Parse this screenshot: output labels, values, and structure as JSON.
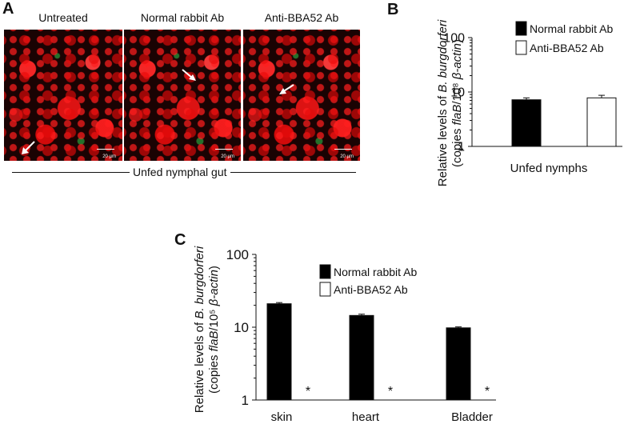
{
  "panel_a": {
    "letter": "A",
    "images": [
      {
        "title": "Untreated",
        "scale_label": "20 µm"
      },
      {
        "title": "Normal rabbit Ab",
        "scale_label": "20 µm"
      },
      {
        "title": "Anti-BBA52 Ab",
        "scale_label": "20 µm"
      }
    ],
    "caption": "Unfed nymphal gut"
  },
  "chart_data": [
    {
      "panel": "B",
      "type": "bar",
      "categories": [
        "Unfed nymphs"
      ],
      "series": [
        {
          "name": "Normal rabbit Ab",
          "values": [
            7.2
          ],
          "errors": [
            0.6
          ],
          "fill": "#000000"
        },
        {
          "name": "Anti-BBA52 Ab",
          "values": [
            7.8
          ],
          "errors": [
            0.9
          ],
          "fill": "#ffffff"
        }
      ],
      "ylabel_line1": "Relative levels of B. burgdorferi",
      "ylabel_line2": "(copies flaB/10⁸ β-actin)",
      "yscale": "log",
      "ylim": [
        1,
        100
      ],
      "yticks": [
        "1",
        "10",
        "100"
      ],
      "legend_position": "top-right"
    },
    {
      "panel": "C",
      "type": "bar",
      "categories": [
        "skin",
        "heart",
        "Bladder"
      ],
      "series": [
        {
          "name": "Normal rabbit Ab",
          "values": [
            21,
            14.5,
            9.8
          ],
          "errors": [
            0.8,
            0.6,
            0.3
          ],
          "fill": "#000000"
        },
        {
          "name": "Anti-BBA52 Ab",
          "values": [
            null,
            null,
            null
          ],
          "fill": "#ffffff"
        }
      ],
      "annotations": [
        "*",
        "*",
        "*"
      ],
      "ylabel_line1": "Relative levels of B. burgdorferi",
      "ylabel_line2": "(copies flaB/10⁵ β-actin)",
      "yscale": "log",
      "ylim": [
        1,
        100
      ],
      "yticks": [
        "1",
        "10",
        "100"
      ],
      "legend_position": "top-right"
    }
  ]
}
